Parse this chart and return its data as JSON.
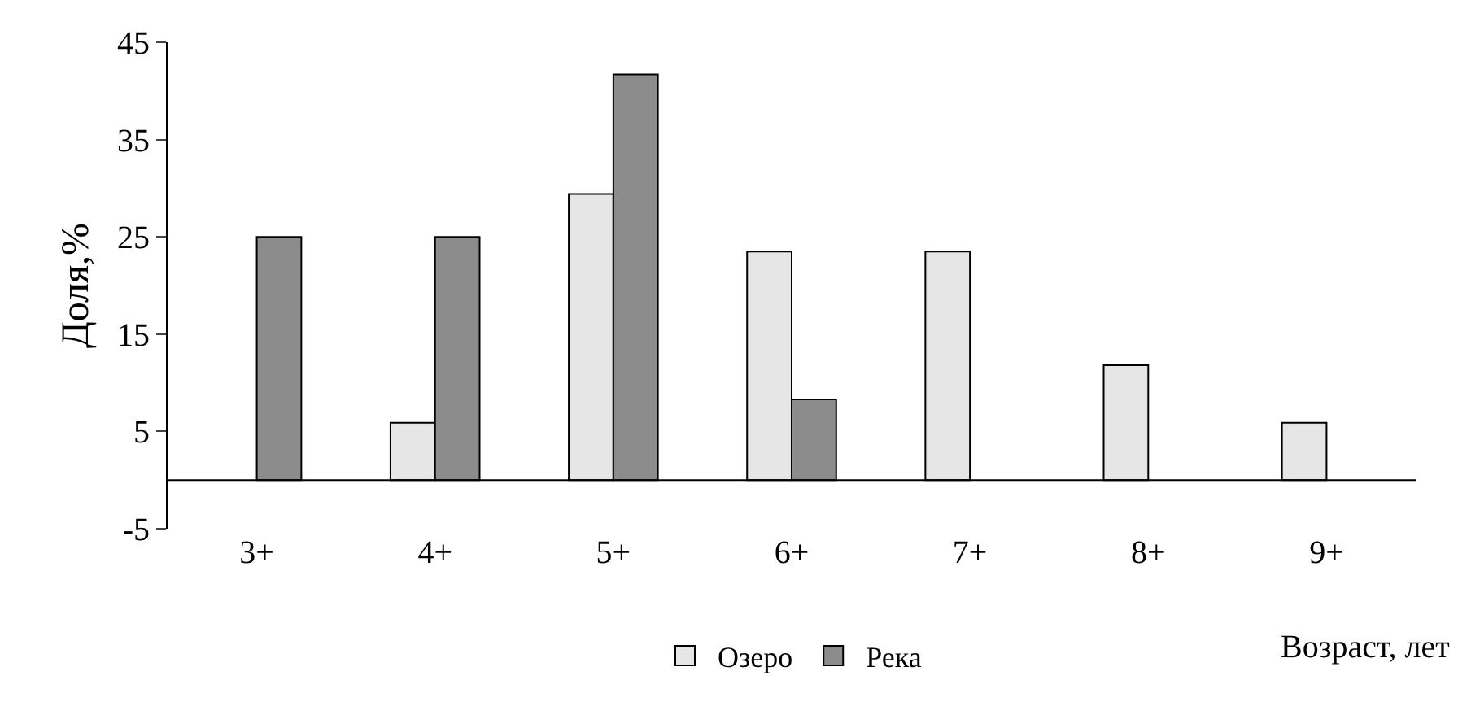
{
  "chart_data": {
    "type": "bar",
    "xlabel": "Возраст, лет",
    "ylabel": "Доля,%",
    "categories": [
      "3+",
      "4+",
      "5+",
      "6+",
      "7+",
      "8+",
      "9+"
    ],
    "series": [
      {
        "name": "Озеро",
        "color": "#e6e6e6",
        "values": [
          null,
          5.9,
          29.4,
          23.5,
          23.5,
          11.8,
          5.9
        ]
      },
      {
        "name": "Река",
        "color": "#8c8c8c",
        "values": [
          25,
          25,
          41.7,
          8.3,
          null,
          null,
          null
        ]
      }
    ],
    "ylim": [
      -5,
      45
    ],
    "yticks": [
      -5,
      5,
      15,
      25,
      35,
      45
    ],
    "grid": false,
    "legend": "bottom"
  }
}
